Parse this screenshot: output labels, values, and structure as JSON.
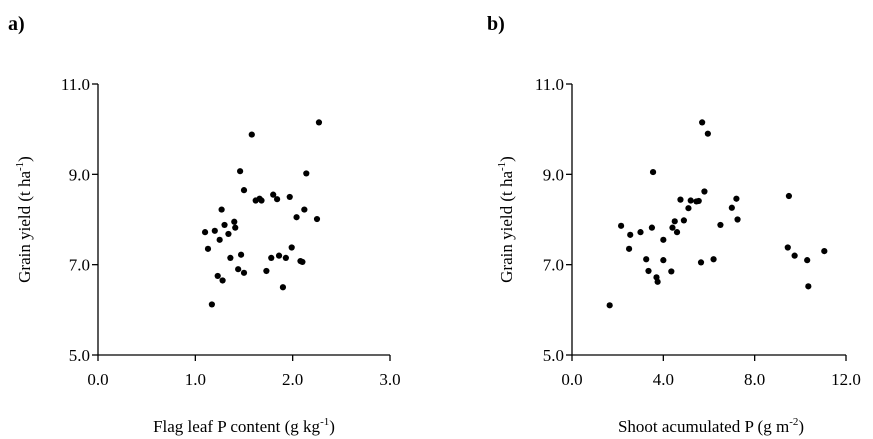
{
  "chart_data": [
    {
      "type": "scatter",
      "panel_label": "a)",
      "xlabel": {
        "main": "Flag leaf P content (g kg",
        "sup": "-1",
        "end": ")"
      },
      "ylabel": {
        "main": "Grain yield (t ha",
        "sup": "-1",
        "end": ")"
      },
      "xlim": [
        0,
        3
      ],
      "ylim": [
        5,
        11
      ],
      "xticks": [
        0,
        1,
        2,
        3
      ],
      "xtick_labels": [
        "0.0",
        "1.0",
        "2.0",
        "3.0"
      ],
      "yticks": [
        5,
        7,
        9,
        11
      ],
      "ytick_labels": [
        "5.0",
        "7.0",
        "9.0",
        "11.0"
      ],
      "grid": false,
      "points": [
        [
          1.1,
          7.72
        ],
        [
          1.13,
          7.35
        ],
        [
          1.17,
          6.12
        ],
        [
          1.2,
          7.75
        ],
        [
          1.23,
          6.75
        ],
        [
          1.25,
          7.55
        ],
        [
          1.27,
          8.22
        ],
        [
          1.28,
          6.65
        ],
        [
          1.3,
          7.88
        ],
        [
          1.34,
          7.68
        ],
        [
          1.36,
          7.15
        ],
        [
          1.4,
          7.95
        ],
        [
          1.41,
          7.82
        ],
        [
          1.44,
          6.9
        ],
        [
          1.46,
          9.07
        ],
        [
          1.47,
          7.22
        ],
        [
          1.5,
          6.82
        ],
        [
          1.5,
          8.65
        ],
        [
          1.58,
          9.88
        ],
        [
          1.62,
          8.42
        ],
        [
          1.66,
          8.46
        ],
        [
          1.68,
          8.42
        ],
        [
          1.73,
          6.86
        ],
        [
          1.78,
          7.15
        ],
        [
          1.8,
          8.55
        ],
        [
          1.84,
          8.45
        ],
        [
          1.86,
          7.2
        ],
        [
          1.9,
          6.5
        ],
        [
          1.93,
          7.15
        ],
        [
          1.97,
          8.5
        ],
        [
          1.99,
          7.38
        ],
        [
          2.04,
          8.05
        ],
        [
          2.08,
          7.08
        ],
        [
          2.1,
          7.06
        ],
        [
          2.12,
          8.22
        ],
        [
          2.14,
          9.02
        ],
        [
          2.25,
          8.01
        ],
        [
          2.27,
          10.15
        ]
      ]
    },
    {
      "type": "scatter",
      "panel_label": "b)",
      "xlabel": {
        "main": "Shoot acumulated P (g m",
        "sup": "-2",
        "end": ")"
      },
      "ylabel": {
        "main": "Grain yield (t ha",
        "sup": "-1",
        "end": ")"
      },
      "xlim": [
        0,
        12
      ],
      "ylim": [
        5,
        11
      ],
      "xticks": [
        0,
        4,
        8,
        12
      ],
      "xtick_labels": [
        "0.0",
        "4.0",
        "8.0",
        "12.0"
      ],
      "yticks": [
        5,
        7,
        9,
        11
      ],
      "ytick_labels": [
        "5.0",
        "7.0",
        "9.0",
        "11.0"
      ],
      "grid": false,
      "points": [
        [
          1.65,
          6.1
        ],
        [
          2.15,
          7.86
        ],
        [
          2.5,
          7.35
        ],
        [
          2.55,
          7.66
        ],
        [
          3.0,
          7.72
        ],
        [
          3.25,
          7.12
        ],
        [
          3.35,
          6.86
        ],
        [
          3.5,
          7.82
        ],
        [
          3.55,
          9.05
        ],
        [
          3.7,
          6.72
        ],
        [
          3.75,
          6.62
        ],
        [
          4.0,
          7.1
        ],
        [
          4.0,
          7.55
        ],
        [
          4.35,
          6.85
        ],
        [
          4.4,
          7.82
        ],
        [
          4.5,
          7.96
        ],
        [
          4.6,
          7.72
        ],
        [
          4.75,
          8.44
        ],
        [
          4.9,
          7.98
        ],
        [
          5.1,
          8.25
        ],
        [
          5.2,
          8.42
        ],
        [
          5.45,
          8.4
        ],
        [
          5.55,
          8.41
        ],
        [
          5.65,
          7.05
        ],
        [
          5.7,
          10.15
        ],
        [
          5.8,
          8.62
        ],
        [
          5.95,
          9.9
        ],
        [
          6.2,
          7.12
        ],
        [
          6.5,
          7.88
        ],
        [
          7.0,
          8.26
        ],
        [
          7.2,
          8.46
        ],
        [
          7.25,
          8.0
        ],
        [
          9.45,
          7.38
        ],
        [
          9.5,
          8.52
        ],
        [
          9.75,
          7.2
        ],
        [
          10.3,
          7.1
        ],
        [
          10.35,
          6.52
        ],
        [
          11.05,
          7.3
        ]
      ]
    }
  ]
}
